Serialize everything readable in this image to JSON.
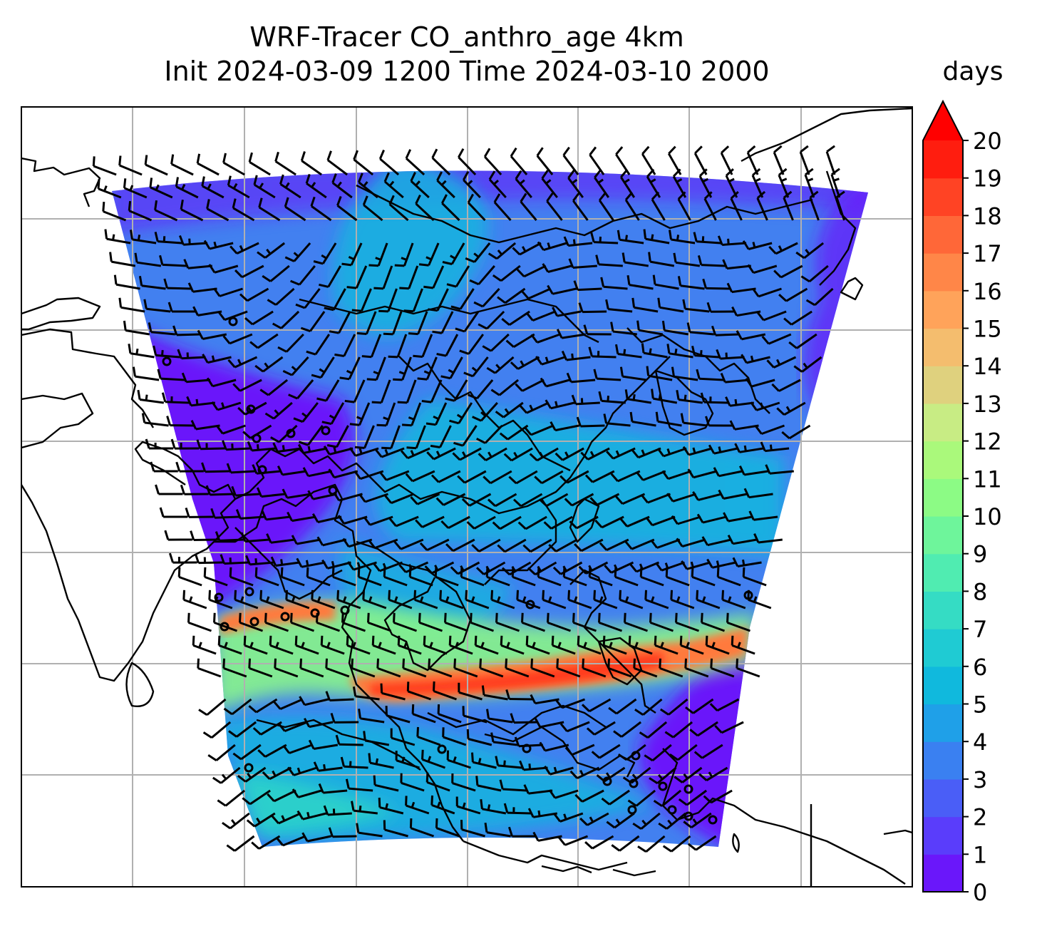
{
  "title": {
    "line1": "WRF-Tracer CO_anthro_age 4km",
    "line2": "Init 2024-03-09 1200 Time 2024-03-10 2000"
  },
  "colorbar": {
    "unit": "days",
    "min": 0,
    "max": 20,
    "extend": "max",
    "ticks": [
      "0",
      "1",
      "2",
      "3",
      "4",
      "5",
      "6",
      "7",
      "8",
      "9",
      "10",
      "11",
      "12",
      "13",
      "14",
      "15",
      "16",
      "17",
      "18",
      "19",
      "20"
    ],
    "colors": [
      "#6a17fa",
      "#5a3dfb",
      "#4a5ef7",
      "#3a80f1",
      "#1fa0e8",
      "#10b9dd",
      "#1fcbd3",
      "#35dcc4",
      "#50ecb1",
      "#6ef59b",
      "#8cfb85",
      "#aaf97b",
      "#c8ec84",
      "#dfd17e",
      "#f4bd6e",
      "#ffa35a",
      "#ff8648",
      "#ff6738",
      "#ff4324",
      "#ff1d0f"
    ],
    "extend_color": "#ff0000"
  },
  "map": {
    "gridlines": true,
    "base_color": "#4280f0",
    "swath_colors": {
      "low": "#6b18fa",
      "mid": "#3d6ef3",
      "cyan": "#14b4df",
      "teal": "#2ed6c8",
      "green": "#8af58a",
      "orange": "#ff7a3e",
      "red": "#ff3a1c"
    },
    "coastline_color": "#000000",
    "wind_barb_color": "#000000"
  }
}
